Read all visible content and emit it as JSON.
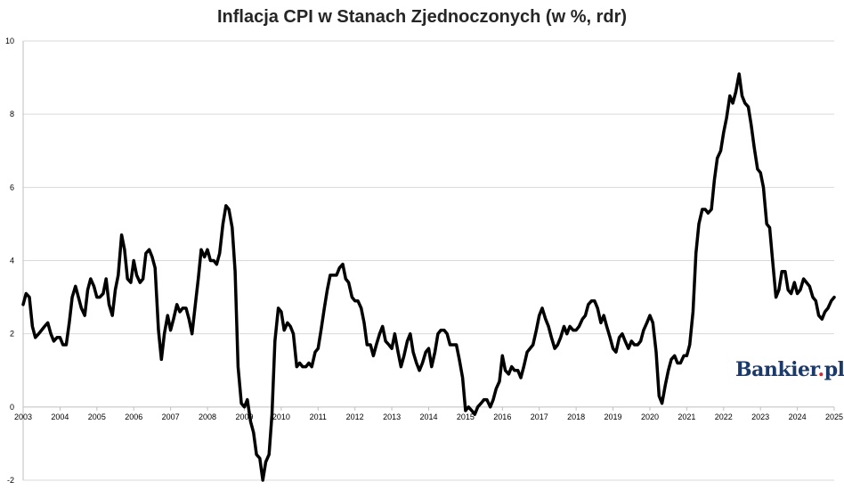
{
  "chart_data": {
    "type": "line",
    "title": "Inflacja CPI w Stanach Zjednoczonych (w %, rdr)",
    "xlabel": "",
    "ylabel": "",
    "ylim": [
      -2,
      10
    ],
    "yticks": [
      "-2",
      "0",
      "2",
      "4",
      "6",
      "8",
      "10"
    ],
    "xticks": [
      "2003",
      "2004",
      "2005",
      "2006",
      "2007",
      "2008",
      "2009",
      "2010",
      "2011",
      "2012",
      "2013",
      "2014",
      "2015",
      "2016",
      "2017",
      "2018",
      "2019",
      "2020",
      "2021",
      "2022",
      "2023",
      "2024",
      "2025"
    ],
    "grid": "horizontal",
    "line_color": "#000000",
    "series": [
      {
        "values": [
          [
            2003.0,
            2.8
          ],
          [
            2003.08,
            3.1
          ],
          [
            2003.17,
            3.0
          ],
          [
            2003.25,
            2.2
          ],
          [
            2003.33,
            1.9
          ],
          [
            2003.42,
            2.0
          ],
          [
            2003.5,
            2.1
          ],
          [
            2003.58,
            2.2
          ],
          [
            2003.67,
            2.3
          ],
          [
            2003.75,
            2.0
          ],
          [
            2003.83,
            1.8
          ],
          [
            2003.92,
            1.9
          ],
          [
            2004.0,
            1.9
          ],
          [
            2004.08,
            1.7
          ],
          [
            2004.17,
            1.7
          ],
          [
            2004.25,
            2.3
          ],
          [
            2004.33,
            3.0
          ],
          [
            2004.42,
            3.3
          ],
          [
            2004.5,
            3.0
          ],
          [
            2004.58,
            2.7
          ],
          [
            2004.67,
            2.5
          ],
          [
            2004.75,
            3.2
          ],
          [
            2004.83,
            3.5
          ],
          [
            2004.92,
            3.3
          ],
          [
            2005.0,
            3.0
          ],
          [
            2005.08,
            3.0
          ],
          [
            2005.17,
            3.1
          ],
          [
            2005.25,
            3.5
          ],
          [
            2005.33,
            2.8
          ],
          [
            2005.42,
            2.5
          ],
          [
            2005.5,
            3.2
          ],
          [
            2005.58,
            3.6
          ],
          [
            2005.67,
            4.7
          ],
          [
            2005.75,
            4.3
          ],
          [
            2005.83,
            3.5
          ],
          [
            2005.92,
            3.4
          ],
          [
            2006.0,
            4.0
          ],
          [
            2006.08,
            3.6
          ],
          [
            2006.17,
            3.4
          ],
          [
            2006.25,
            3.5
          ],
          [
            2006.33,
            4.2
          ],
          [
            2006.42,
            4.3
          ],
          [
            2006.5,
            4.1
          ],
          [
            2006.58,
            3.8
          ],
          [
            2006.67,
            2.1
          ],
          [
            2006.75,
            1.3
          ],
          [
            2006.83,
            2.0
          ],
          [
            2006.92,
            2.5
          ],
          [
            2007.0,
            2.1
          ],
          [
            2007.08,
            2.4
          ],
          [
            2007.17,
            2.8
          ],
          [
            2007.25,
            2.6
          ],
          [
            2007.33,
            2.7
          ],
          [
            2007.42,
            2.7
          ],
          [
            2007.5,
            2.4
          ],
          [
            2007.58,
            2.0
          ],
          [
            2007.67,
            2.8
          ],
          [
            2007.75,
            3.5
          ],
          [
            2007.83,
            4.3
          ],
          [
            2007.92,
            4.1
          ],
          [
            2008.0,
            4.3
          ],
          [
            2008.08,
            4.0
          ],
          [
            2008.17,
            4.0
          ],
          [
            2008.25,
            3.9
          ],
          [
            2008.33,
            4.2
          ],
          [
            2008.42,
            5.0
          ],
          [
            2008.5,
            5.5
          ],
          [
            2008.58,
            5.4
          ],
          [
            2008.67,
            4.9
          ],
          [
            2008.75,
            3.7
          ],
          [
            2008.83,
            1.1
          ],
          [
            2008.92,
            0.1
          ],
          [
            2009.0,
            0.0
          ],
          [
            2009.08,
            0.2
          ],
          [
            2009.17,
            -0.4
          ],
          [
            2009.25,
            -0.7
          ],
          [
            2009.33,
            -1.3
          ],
          [
            2009.42,
            -1.4
          ],
          [
            2009.5,
            -2.0
          ],
          [
            2009.58,
            -1.5
          ],
          [
            2009.67,
            -1.3
          ],
          [
            2009.75,
            -0.2
          ],
          [
            2009.83,
            1.8
          ],
          [
            2009.92,
            2.7
          ],
          [
            2010.0,
            2.6
          ],
          [
            2010.08,
            2.1
          ],
          [
            2010.17,
            2.3
          ],
          [
            2010.25,
            2.2
          ],
          [
            2010.33,
            2.0
          ],
          [
            2010.42,
            1.1
          ],
          [
            2010.5,
            1.2
          ],
          [
            2010.58,
            1.1
          ],
          [
            2010.67,
            1.1
          ],
          [
            2010.75,
            1.2
          ],
          [
            2010.83,
            1.1
          ],
          [
            2010.92,
            1.5
          ],
          [
            2011.0,
            1.6
          ],
          [
            2011.08,
            2.1
          ],
          [
            2011.17,
            2.7
          ],
          [
            2011.25,
            3.2
          ],
          [
            2011.33,
            3.6
          ],
          [
            2011.42,
            3.6
          ],
          [
            2011.5,
            3.6
          ],
          [
            2011.58,
            3.8
          ],
          [
            2011.67,
            3.9
          ],
          [
            2011.75,
            3.5
          ],
          [
            2011.83,
            3.4
          ],
          [
            2011.92,
            3.0
          ],
          [
            2012.0,
            2.9
          ],
          [
            2012.08,
            2.9
          ],
          [
            2012.17,
            2.7
          ],
          [
            2012.25,
            2.3
          ],
          [
            2012.33,
            1.7
          ],
          [
            2012.42,
            1.7
          ],
          [
            2012.5,
            1.4
          ],
          [
            2012.58,
            1.7
          ],
          [
            2012.67,
            2.0
          ],
          [
            2012.75,
            2.2
          ],
          [
            2012.83,
            1.8
          ],
          [
            2012.92,
            1.7
          ],
          [
            2013.0,
            1.6
          ],
          [
            2013.08,
            2.0
          ],
          [
            2013.17,
            1.5
          ],
          [
            2013.25,
            1.1
          ],
          [
            2013.33,
            1.4
          ],
          [
            2013.42,
            1.8
          ],
          [
            2013.5,
            2.0
          ],
          [
            2013.58,
            1.5
          ],
          [
            2013.67,
            1.2
          ],
          [
            2013.75,
            1.0
          ],
          [
            2013.83,
            1.2
          ],
          [
            2013.92,
            1.5
          ],
          [
            2014.0,
            1.6
          ],
          [
            2014.08,
            1.1
          ],
          [
            2014.17,
            1.5
          ],
          [
            2014.25,
            2.0
          ],
          [
            2014.33,
            2.1
          ],
          [
            2014.42,
            2.1
          ],
          [
            2014.5,
            2.0
          ],
          [
            2014.58,
            1.7
          ],
          [
            2014.67,
            1.7
          ],
          [
            2014.75,
            1.7
          ],
          [
            2014.83,
            1.3
          ],
          [
            2014.92,
            0.8
          ],
          [
            2015.0,
            -0.1
          ],
          [
            2015.08,
            0.0
          ],
          [
            2015.17,
            -0.1
          ],
          [
            2015.25,
            -0.2
          ],
          [
            2015.33,
            0.0
          ],
          [
            2015.42,
            0.1
          ],
          [
            2015.5,
            0.2
          ],
          [
            2015.58,
            0.2
          ],
          [
            2015.67,
            0.0
          ],
          [
            2015.75,
            0.2
          ],
          [
            2015.83,
            0.5
          ],
          [
            2015.92,
            0.7
          ],
          [
            2016.0,
            1.4
          ],
          [
            2016.08,
            1.0
          ],
          [
            2016.17,
            0.9
          ],
          [
            2016.25,
            1.1
          ],
          [
            2016.33,
            1.0
          ],
          [
            2016.42,
            1.0
          ],
          [
            2016.5,
            0.8
          ],
          [
            2016.58,
            1.1
          ],
          [
            2016.67,
            1.5
          ],
          [
            2016.75,
            1.6
          ],
          [
            2016.83,
            1.7
          ],
          [
            2016.92,
            2.1
          ],
          [
            2017.0,
            2.5
          ],
          [
            2017.08,
            2.7
          ],
          [
            2017.17,
            2.4
          ],
          [
            2017.25,
            2.2
          ],
          [
            2017.33,
            1.9
          ],
          [
            2017.42,
            1.6
          ],
          [
            2017.5,
            1.7
          ],
          [
            2017.58,
            1.9
          ],
          [
            2017.67,
            2.2
          ],
          [
            2017.75,
            2.0
          ],
          [
            2017.83,
            2.2
          ],
          [
            2017.92,
            2.1
          ],
          [
            2018.0,
            2.1
          ],
          [
            2018.08,
            2.2
          ],
          [
            2018.17,
            2.4
          ],
          [
            2018.25,
            2.5
          ],
          [
            2018.33,
            2.8
          ],
          [
            2018.42,
            2.9
          ],
          [
            2018.5,
            2.9
          ],
          [
            2018.58,
            2.7
          ],
          [
            2018.67,
            2.3
          ],
          [
            2018.75,
            2.5
          ],
          [
            2018.83,
            2.2
          ],
          [
            2018.92,
            1.9
          ],
          [
            2019.0,
            1.6
          ],
          [
            2019.08,
            1.5
          ],
          [
            2019.17,
            1.9
          ],
          [
            2019.25,
            2.0
          ],
          [
            2019.33,
            1.8
          ],
          [
            2019.42,
            1.6
          ],
          [
            2019.5,
            1.8
          ],
          [
            2019.58,
            1.7
          ],
          [
            2019.67,
            1.7
          ],
          [
            2019.75,
            1.8
          ],
          [
            2019.83,
            2.1
          ],
          [
            2019.92,
            2.3
          ],
          [
            2020.0,
            2.5
          ],
          [
            2020.08,
            2.3
          ],
          [
            2020.17,
            1.5
          ],
          [
            2020.25,
            0.3
          ],
          [
            2020.33,
            0.1
          ],
          [
            2020.42,
            0.6
          ],
          [
            2020.5,
            1.0
          ],
          [
            2020.58,
            1.3
          ],
          [
            2020.67,
            1.4
          ],
          [
            2020.75,
            1.2
          ],
          [
            2020.83,
            1.2
          ],
          [
            2020.92,
            1.4
          ],
          [
            2021.0,
            1.4
          ],
          [
            2021.08,
            1.7
          ],
          [
            2021.17,
            2.6
          ],
          [
            2021.25,
            4.2
          ],
          [
            2021.33,
            5.0
          ],
          [
            2021.42,
            5.4
          ],
          [
            2021.5,
            5.4
          ],
          [
            2021.58,
            5.3
          ],
          [
            2021.67,
            5.4
          ],
          [
            2021.75,
            6.2
          ],
          [
            2021.83,
            6.8
          ],
          [
            2021.92,
            7.0
          ],
          [
            2022.0,
            7.5
          ],
          [
            2022.08,
            7.9
          ],
          [
            2022.17,
            8.5
          ],
          [
            2022.25,
            8.3
          ],
          [
            2022.33,
            8.6
          ],
          [
            2022.42,
            9.1
          ],
          [
            2022.5,
            8.5
          ],
          [
            2022.58,
            8.3
          ],
          [
            2022.67,
            8.2
          ],
          [
            2022.75,
            7.7
          ],
          [
            2022.83,
            7.1
          ],
          [
            2022.92,
            6.5
          ],
          [
            2023.0,
            6.4
          ],
          [
            2023.08,
            6.0
          ],
          [
            2023.17,
            5.0
          ],
          [
            2023.25,
            4.9
          ],
          [
            2023.33,
            4.0
          ],
          [
            2023.42,
            3.0
          ],
          [
            2023.5,
            3.2
          ],
          [
            2023.58,
            3.7
          ],
          [
            2023.67,
            3.7
          ],
          [
            2023.75,
            3.2
          ],
          [
            2023.83,
            3.1
          ],
          [
            2023.92,
            3.4
          ],
          [
            2024.0,
            3.1
          ],
          [
            2024.08,
            3.2
          ],
          [
            2024.17,
            3.5
          ],
          [
            2024.25,
            3.4
          ],
          [
            2024.33,
            3.3
          ],
          [
            2024.42,
            3.0
          ],
          [
            2024.5,
            2.9
          ],
          [
            2024.58,
            2.5
          ],
          [
            2024.67,
            2.4
          ],
          [
            2024.75,
            2.6
          ],
          [
            2024.83,
            2.7
          ],
          [
            2024.92,
            2.9
          ],
          [
            2025.0,
            3.0
          ]
        ]
      }
    ]
  },
  "watermark": {
    "brand": "Bankier",
    "dot": ".",
    "tld": "pl"
  }
}
